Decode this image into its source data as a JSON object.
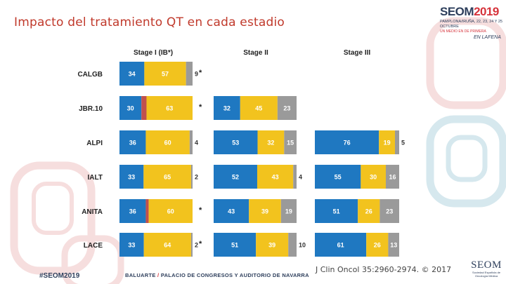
{
  "slide": {
    "title": "Impacto del tratamiento QT en cada estadio",
    "citation": "J Clin Oncol 35:2960-2974. © 2017",
    "hashtag": "#SEOM2019",
    "venue_left": "BALUARTE",
    "venue_slash": "/",
    "venue_right": "PALACIO DE CONGRESOS Y AUDITORIO DE NAVARRA"
  },
  "logo": {
    "name": "SEOM",
    "year": "2019",
    "line1": "PAMPLONA/IRUÑA, 22, 23, 24 Y 25 OCTUBRE",
    "line2": "UN MEDIO EN DE PRIMERA",
    "line3": "EN LAFENA",
    "bottom_name": "SEOM",
    "bottom_sub": "Sociedad Española de Oncología Médica"
  },
  "colors": {
    "blue": "#1f78c1",
    "red": "#c0504d",
    "yellow": "#f2c31e",
    "gray": "#9a9a9a",
    "deco_red": "#f6dede",
    "deco_blue": "#d6e8ee"
  },
  "chart_data": {
    "type": "bar",
    "orientation": "horizontal",
    "stacked": true,
    "panels": [
      "Stage I (IB*)",
      "Stage II",
      "Stage III"
    ],
    "rows": [
      "CALGB",
      "JBR.10",
      "ALPI",
      "IALT",
      "ANITA",
      "LACE"
    ],
    "segment_colors": [
      "blue",
      "red",
      "yellow",
      "gray"
    ],
    "data": [
      [
        {
          "segments": [
            34,
            0,
            57,
            9
          ],
          "labels": [
            "34",
            "",
            "57",
            "9"
          ],
          "marker": "*"
        },
        {
          "segments": [
            30,
            7,
            63,
            0
          ],
          "labels": [
            "30",
            "7",
            "63",
            ""
          ],
          "marker": "*"
        },
        {
          "segments": [
            36,
            0,
            60,
            4
          ],
          "labels": [
            "36",
            "",
            "60",
            "4"
          ],
          "marker": ""
        },
        {
          "segments": [
            33,
            0,
            65,
            2
          ],
          "labels": [
            "33",
            "",
            "65",
            "2"
          ],
          "marker": ""
        },
        {
          "segments": [
            36,
            4,
            60,
            0
          ],
          "labels": [
            "36",
            "4",
            "60",
            ""
          ],
          "marker": "*"
        },
        {
          "segments": [
            33,
            0,
            64,
            2
          ],
          "labels": [
            "33",
            "",
            "64",
            "2"
          ],
          "marker": "*"
        }
      ],
      [
        null,
        {
          "segments": [
            32,
            0,
            45,
            23
          ],
          "labels": [
            "32",
            "",
            "45",
            "23"
          ],
          "marker": ""
        },
        {
          "segments": [
            53,
            0,
            32,
            15
          ],
          "labels": [
            "53",
            "",
            "32",
            "15"
          ],
          "marker": ""
        },
        {
          "segments": [
            52,
            0,
            43,
            4
          ],
          "labels": [
            "52",
            "",
            "43",
            "4"
          ],
          "marker": ""
        },
        {
          "segments": [
            43,
            0,
            39,
            19
          ],
          "labels": [
            "43",
            "",
            "39",
            "19"
          ],
          "marker": ""
        },
        {
          "segments": [
            51,
            0,
            39,
            10
          ],
          "labels": [
            "51",
            "",
            "39",
            "10"
          ],
          "marker": ""
        }
      ],
      [
        null,
        null,
        {
          "segments": [
            76,
            0,
            19,
            5
          ],
          "labels": [
            "76",
            "",
            "19",
            "5"
          ],
          "marker": ""
        },
        {
          "segments": [
            55,
            0,
            30,
            16
          ],
          "labels": [
            "55",
            "",
            "30",
            "16"
          ],
          "marker": ""
        },
        {
          "segments": [
            51,
            0,
            26,
            23
          ],
          "labels": [
            "51",
            "",
            "26",
            "23"
          ],
          "marker": ""
        },
        {
          "segments": [
            61,
            0,
            26,
            13
          ],
          "labels": [
            "61",
            "",
            "26",
            "13"
          ],
          "marker": ""
        }
      ]
    ]
  }
}
